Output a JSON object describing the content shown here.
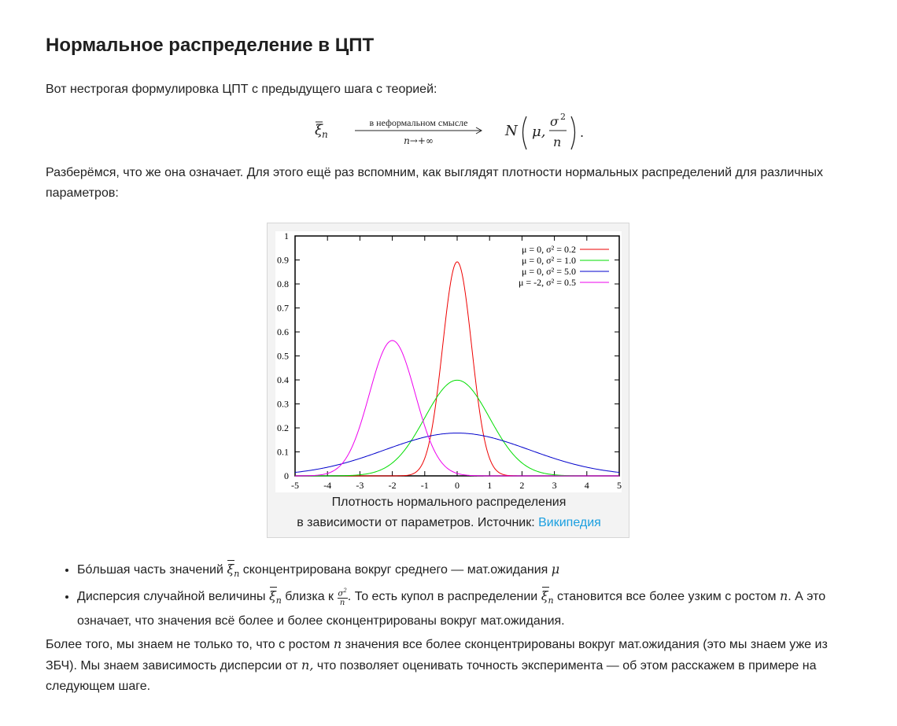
{
  "title": "Нормальное распределение в ЦПТ",
  "intro": "Вот нестрогая формулировка ЦПТ с предыдущего шага с теорией:",
  "formula": {
    "lhs": "ξ",
    "lhs_sub": "n",
    "arrow_top": "в неформальном смысле",
    "arrow_bottom": "n→+∞",
    "rhs_N": "N",
    "rhs_mu": "μ,",
    "rhs_num": "σ",
    "rhs_num_sup": "2",
    "rhs_den": "n",
    "dot": "."
  },
  "para1": "Разберёмся, что же она означает. Для этого ещё раз вспомним, как выглядят плотности нормальных распределений для различных параметров:",
  "figure": {
    "caption_line1": "Плотность нормального распределения",
    "caption_line2_prefix": "в зависимости от параметров. Источник: ",
    "caption_link": "Википедия",
    "link_color": "#1a9fe0"
  },
  "chart_data": {
    "type": "line",
    "title": "",
    "xlabel": "",
    "ylabel": "",
    "xlim": [
      -5,
      5
    ],
    "ylim": [
      0,
      1
    ],
    "x_ticks": [
      "-5",
      "-4",
      "-3",
      "-2",
      "-1",
      "0",
      "1",
      "2",
      "3",
      "4",
      "5"
    ],
    "y_ticks": [
      "0",
      "0.1",
      "0.2",
      "0.3",
      "0.4",
      "0.5",
      "0.6",
      "0.7",
      "0.8",
      "0.9",
      "1"
    ],
    "grid": false,
    "legend_position": "top-right",
    "series": [
      {
        "name": "μ =  0, σ² = 0.2",
        "mu": 0,
        "variance": 0.2,
        "peak": 0.89,
        "color": "#ee0000"
      },
      {
        "name": "μ =  0, σ² = 1.0",
        "mu": 0,
        "variance": 1.0,
        "peak": 0.4,
        "color": "#00dd00"
      },
      {
        "name": "μ =  0, σ² = 5.0",
        "mu": 0,
        "variance": 5.0,
        "peak": 0.18,
        "color": "#0000cc"
      },
      {
        "name": "μ = -2, σ² = 0.5",
        "mu": -2,
        "variance": 0.5,
        "peak": 0.56,
        "color": "#ee00ee"
      }
    ]
  },
  "bullets": {
    "b1_prefix": "Бóльшая часть значений",
    "b1_mid": "сконцентрирована вокруг среднего — мат.ожидания",
    "b1_mu": "μ",
    "b2_prefix": "Дисперсия случайной величины",
    "b2_mid1": "близка к",
    "b2_mid2": ". То есть купол в распределении",
    "b2_mid3": "становится все более узким с ростом",
    "b2_n": "n",
    "b2_suffix": ". А это означает, что значения всё более и более сконцентрированы вокруг мат.ожидания."
  },
  "para2": {
    "part1": "Более того, мы знаем не только то, что с ростом",
    "n1": "n",
    "part2": "значения все более сконцентрированы вокруг мат.ожидания (это мы знаем уже из ЗБЧ). Мы знаем зависимость дисперсии от",
    "n2": "n,",
    "part3": "что позволяет оценивать точность эксперимента — об этом расскажем в примере на следующем шаге."
  }
}
